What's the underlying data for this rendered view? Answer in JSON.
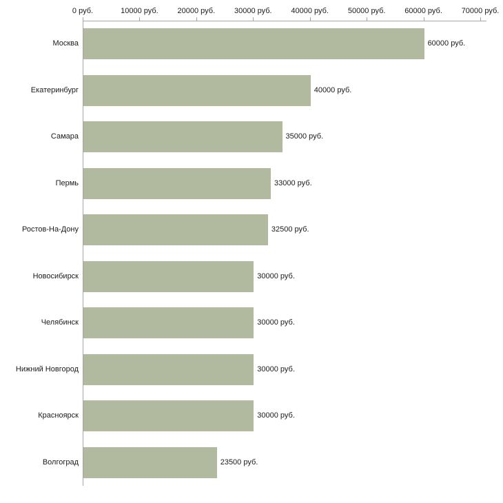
{
  "chart_data": {
    "type": "bar",
    "orientation": "horizontal",
    "title": "",
    "xlabel": "",
    "ylabel": "",
    "categories": [
      "Москва",
      "Екатеринбург",
      "Самара",
      "Пермь",
      "Ростов-На-Дону",
      "Новосибирск",
      "Челябинск",
      "Нижний Новгород",
      "Красноярск",
      "Волгоград"
    ],
    "values": [
      60000,
      40000,
      35000,
      33000,
      32500,
      30000,
      30000,
      30000,
      30000,
      23500
    ],
    "value_labels": [
      "60000 руб.",
      "40000 руб.",
      "35000 руб.",
      "33000 руб.",
      "32500 руб.",
      "30000 руб.",
      "30000 руб.",
      "30000 руб.",
      "30000 руб.",
      "23500 руб."
    ],
    "x_ticks": [
      0,
      10000,
      20000,
      30000,
      40000,
      50000,
      60000,
      70000
    ],
    "x_tick_labels": [
      "0 руб.",
      "10000 руб.",
      "20000 руб.",
      "30000 руб.",
      "40000 руб.",
      "50000 руб.",
      "60000 руб.",
      "70000 руб."
    ],
    "xlim": [
      0,
      70000
    ],
    "grid": false,
    "legend": false,
    "axis_position": "top",
    "colors": {
      "bar": "#b1ba9f",
      "axis": "#a6a6a6",
      "text": "#1a1a1a",
      "background": "#ffffff"
    }
  }
}
